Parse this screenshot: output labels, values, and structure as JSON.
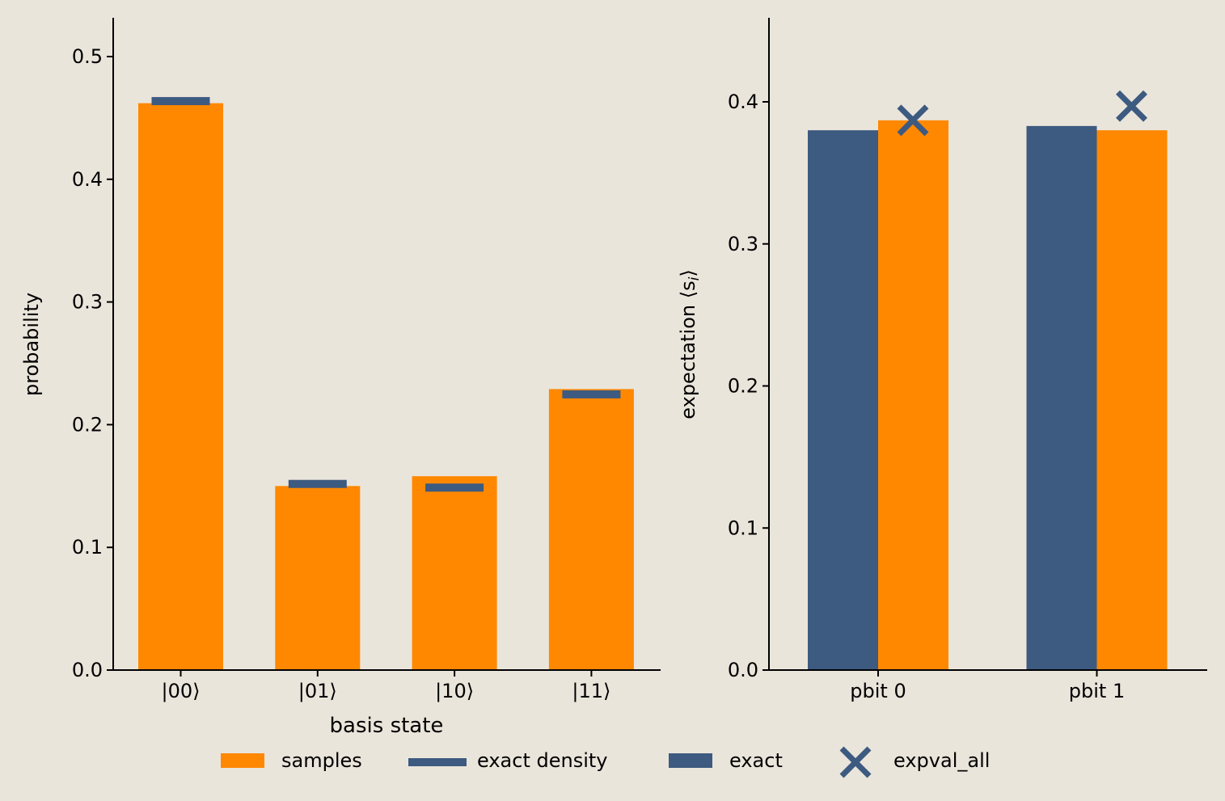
{
  "colors": {
    "background": "#eae5db",
    "samples": "#ff8800",
    "exact": "#3d5a80"
  },
  "legend": {
    "samples": "samples",
    "exact_density": "exact density",
    "exact": "exact",
    "expval_all": "expval_all"
  },
  "chart_data": [
    {
      "type": "bar",
      "xlabel": "basis state",
      "ylabel": "probability",
      "categories": [
        "|00⟩",
        "|01⟩",
        "|10⟩",
        "|11⟩"
      ],
      "ylim": [
        0,
        0.53
      ],
      "yticks": [
        "0.0",
        "0.1",
        "0.2",
        "0.3",
        "0.4",
        "0.5"
      ],
      "series": [
        {
          "name": "samples",
          "values": [
            0.462,
            0.15,
            0.158,
            0.229
          ]
        },
        {
          "name": "exact density",
          "values": [
            0.467,
            0.155,
            0.152,
            0.228
          ]
        }
      ]
    },
    {
      "type": "bar",
      "xlabel": "",
      "ylabel": "expectation ⟨s",
      "ylabel_sub": "i",
      "ylabel_close": "⟩",
      "categories": [
        "pbit 0",
        "pbit 1"
      ],
      "ylim": [
        0,
        0.457
      ],
      "yticks": [
        "0.0",
        "0.1",
        "0.2",
        "0.3",
        "0.4"
      ],
      "series": [
        {
          "name": "exact",
          "values": [
            0.38,
            0.383
          ]
        },
        {
          "name": "samples",
          "values": [
            0.387,
            0.38
          ]
        },
        {
          "name": "expval_all",
          "values": [
            0.387,
            0.397
          ]
        }
      ]
    }
  ]
}
